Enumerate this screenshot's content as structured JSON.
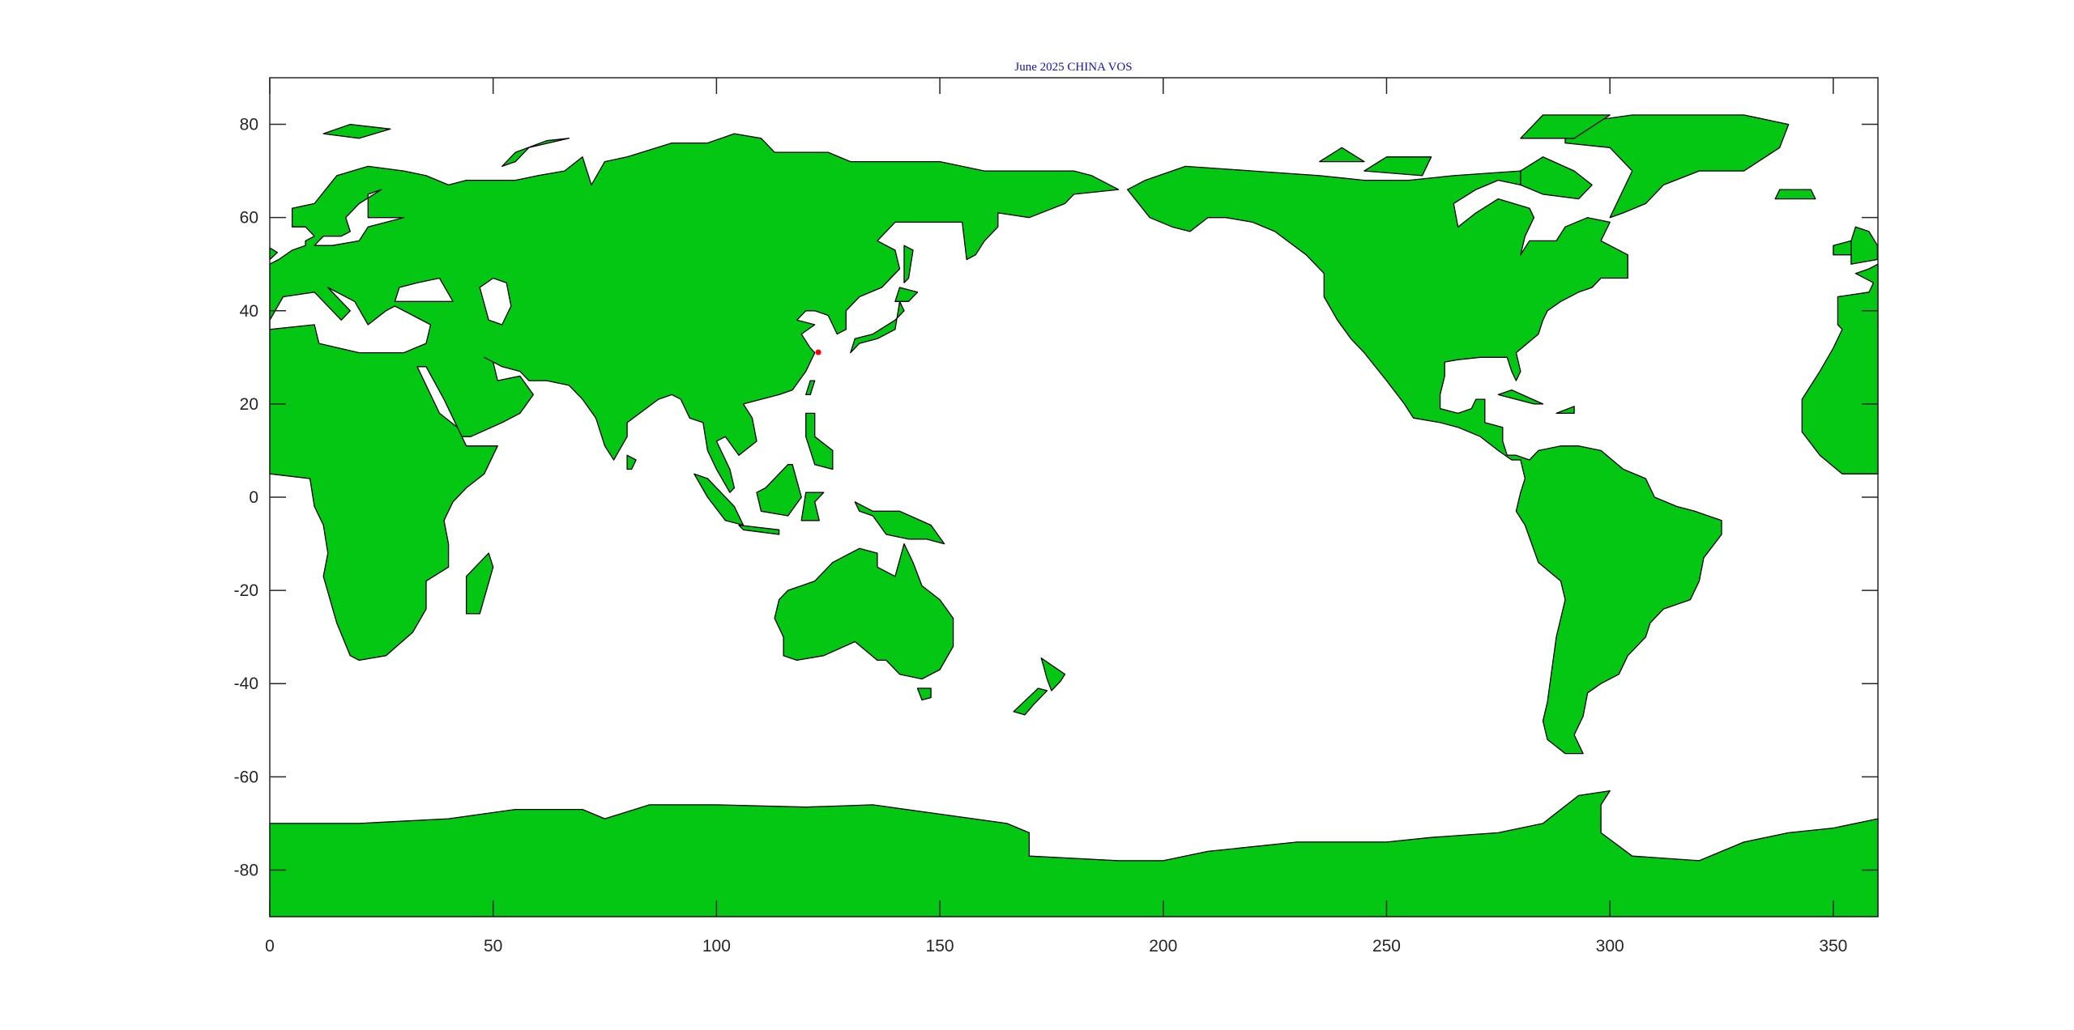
{
  "title": "June 2025 CHINA VOS",
  "map": {
    "projection": "equirectangular",
    "lon_range": [
      0,
      360
    ],
    "lat_range": [
      -90,
      90
    ],
    "x_ticks": [
      "0",
      "50",
      "100",
      "150",
      "200",
      "250",
      "300",
      "350"
    ],
    "y_ticks": [
      "-80",
      "-60",
      "-40",
      "-20",
      "0",
      "20",
      "40",
      "60",
      "80"
    ],
    "markers": [
      {
        "lon": 122.8,
        "lat": 31.1
      }
    ],
    "colors": {
      "land": "#04c714",
      "coast": "#000000",
      "ocean": "#ffffff",
      "marker": "#ff0000",
      "title": "#1010c8"
    }
  }
}
